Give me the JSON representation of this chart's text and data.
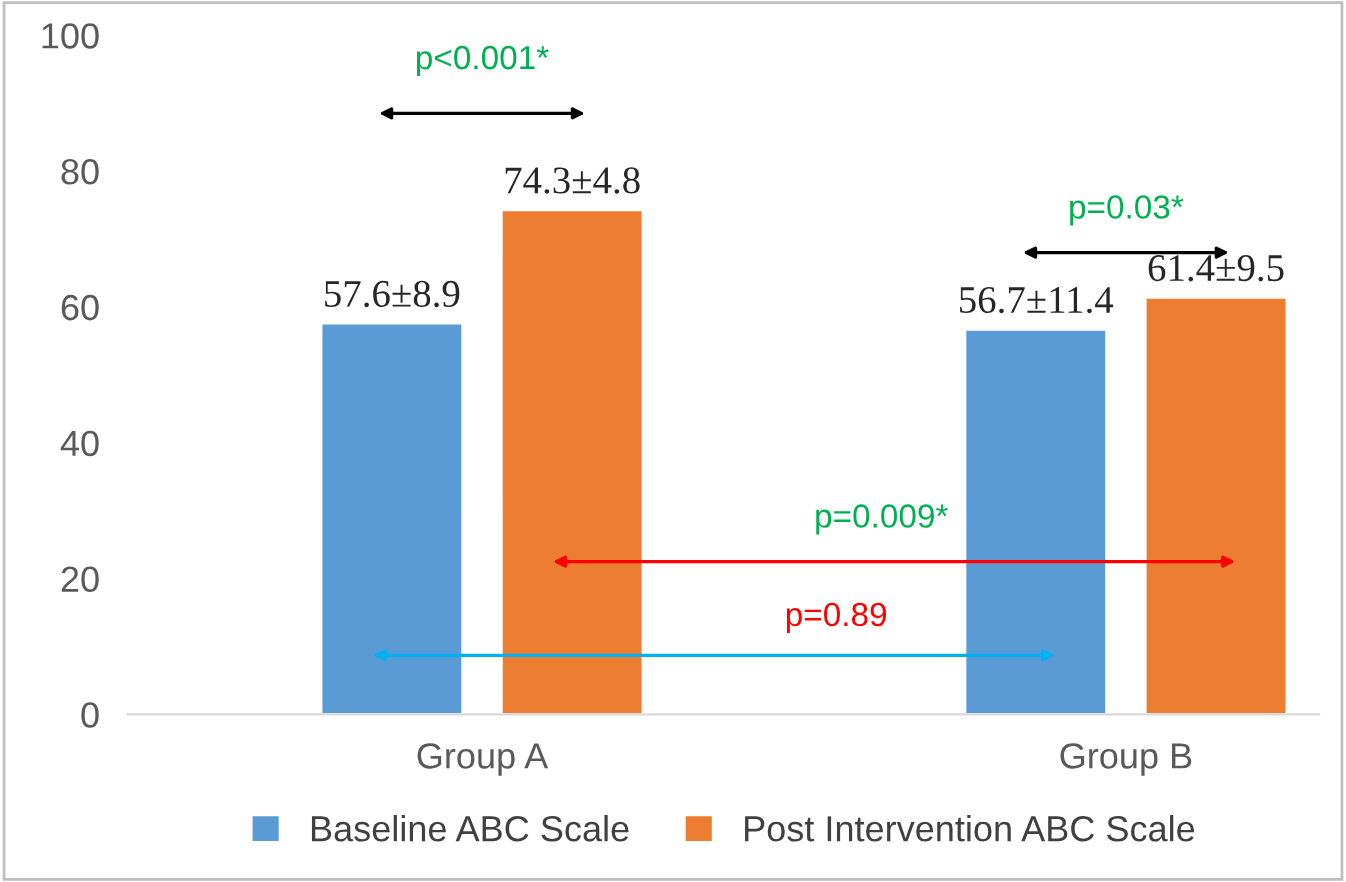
{
  "chart_data": {
    "type": "bar",
    "categories": [
      "Group A",
      "Group B"
    ],
    "series": [
      {
        "name": "Baseline ABC Scale",
        "color": "#5b9bd5",
        "values": [
          57.6,
          56.7
        ],
        "value_labels": [
          "57.6±8.9",
          "56.7±11.4"
        ]
      },
      {
        "name": "Post Intervention ABC Scale",
        "color": "#ed7d31",
        "values": [
          74.3,
          61.4
        ],
        "value_labels": [
          "74.3±4.8",
          "61.4±9.5"
        ]
      }
    ],
    "ylim": [
      0,
      100
    ],
    "yticks": [
      0,
      20,
      40,
      60,
      80,
      100
    ],
    "grid": false,
    "legend": "bottom",
    "annotations": [
      "p<0.001*",
      "p=0.03*",
      "p=0.009*",
      "p=0.89"
    ]
  }
}
